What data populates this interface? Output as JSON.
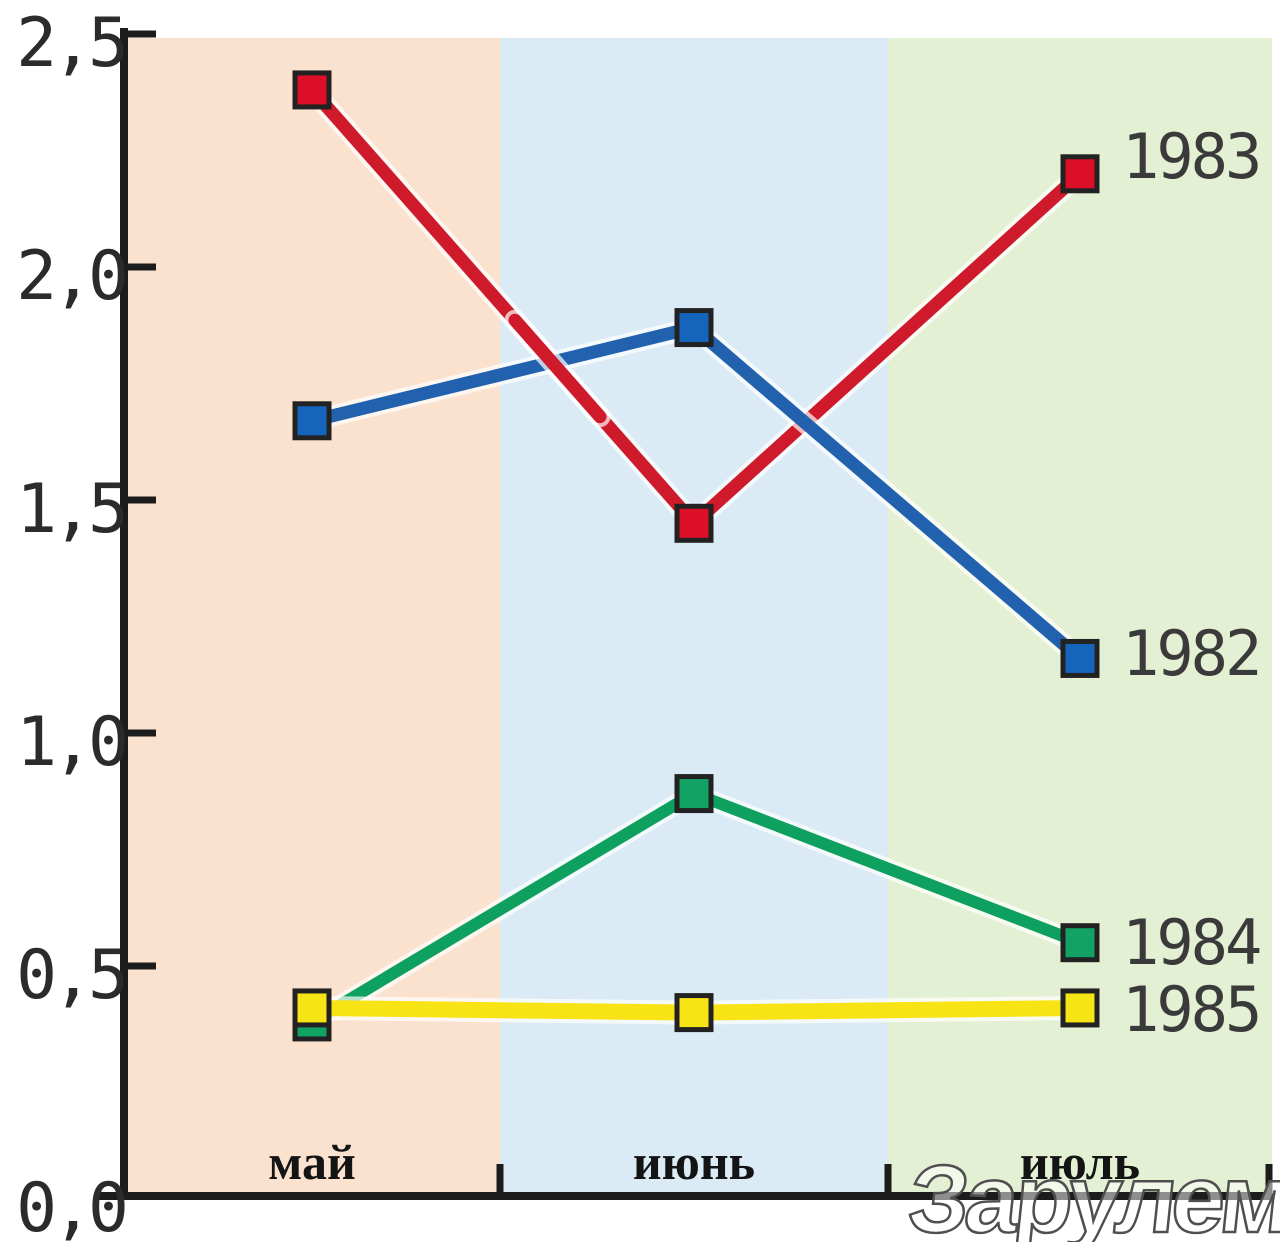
{
  "watermark": {
    "text": "Зарулем"
  },
  "chart_data": {
    "type": "line",
    "title": "",
    "categories": [
      "май",
      "июнь",
      "июль"
    ],
    "series": [
      {
        "name": "1983",
        "color": "#ce1a2b",
        "marker_color": "#dd0f28",
        "values": [
          2.38,
          1.45,
          2.2
        ]
      },
      {
        "name": "1982",
        "color": "#2161ae",
        "marker_color": "#1565bd",
        "values": [
          1.67,
          1.87,
          1.16
        ]
      },
      {
        "name": "1984",
        "color": "#0da05e",
        "marker_color": "#12a263",
        "values": [
          0.38,
          0.87,
          0.55
        ]
      },
      {
        "name": "1985",
        "color": "#f8e414",
        "marker_color": "#f6e414",
        "values": [
          0.41,
          0.4,
          0.41
        ]
      }
    ],
    "ylim": [
      0,
      2.5
    ],
    "ytick_step": 0.5,
    "ytick_labels": [
      "0,0",
      "0,5",
      "1,0",
      "1,5",
      "2,0",
      "2,5"
    ],
    "xtick_labels": [
      "май",
      "июнь",
      "июль"
    ],
    "decimal_separator": ",",
    "grid": false,
    "legend_position": "right-of-last-point",
    "band_colors": [
      "#fbe2cf",
      "#daebf6",
      "#e4f0d4"
    ],
    "axis_color": "#1c1c1c",
    "marker_border_color": "#222222",
    "series_label_color": "#3a3a3a"
  }
}
